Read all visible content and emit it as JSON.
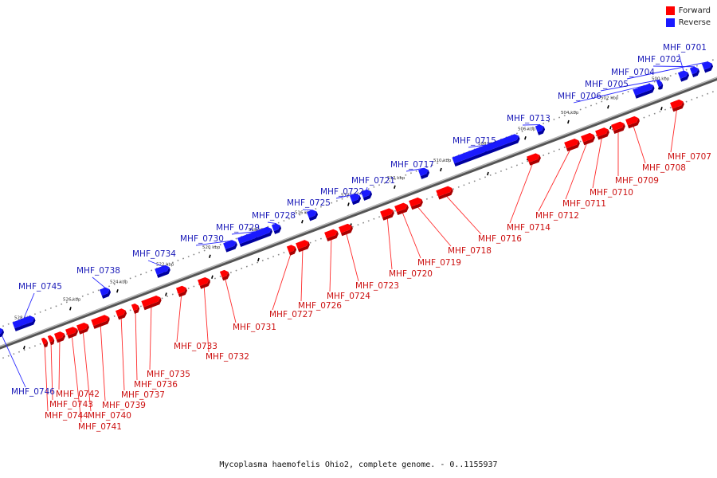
{
  "legend": {
    "forward_label": "Forward",
    "reverse_label": "Reverse",
    "forward_color": "#ff0000",
    "reverse_color": "#1a1aff"
  },
  "caption": "Mycoplasma haemofelis Ohio2, complete genome. - 0..1155937",
  "axis_ticks": [
    "500 kbp",
    "502 kbp",
    "504 kbp",
    "506 kbp",
    "508 kbp",
    "510 kbp",
    "512 kbp",
    "514 kbp",
    "516 kbp",
    "518 kbp",
    "520 kbp",
    "522 kbp",
    "524 kbp",
    "526 kbp",
    "528 kbp"
  ],
  "genes": [
    {
      "id": "MHF_0701",
      "strand": "reverse"
    },
    {
      "id": "MHF_0702",
      "strand": "reverse"
    },
    {
      "id": "MHF_0704",
      "strand": "reverse"
    },
    {
      "id": "MHF_0705",
      "strand": "reverse"
    },
    {
      "id": "MHF_0706",
      "strand": "reverse"
    },
    {
      "id": "MHF_0713",
      "strand": "reverse"
    },
    {
      "id": "MHF_0715",
      "strand": "reverse"
    },
    {
      "id": "MHF_0717",
      "strand": "reverse"
    },
    {
      "id": "MHF_0721",
      "strand": "reverse"
    },
    {
      "id": "MHF_0722",
      "strand": "reverse"
    },
    {
      "id": "MHF_0725",
      "strand": "reverse"
    },
    {
      "id": "MHF_0728",
      "strand": "reverse"
    },
    {
      "id": "MHF_0729",
      "strand": "reverse"
    },
    {
      "id": "MHF_0730",
      "strand": "reverse"
    },
    {
      "id": "MHF_0734",
      "strand": "reverse"
    },
    {
      "id": "MHF_0738",
      "strand": "reverse"
    },
    {
      "id": "MHF_0745",
      "strand": "reverse"
    },
    {
      "id": "MHF_0746",
      "strand": "reverse"
    },
    {
      "id": "MHF_0707",
      "strand": "forward"
    },
    {
      "id": "MHF_0708",
      "strand": "forward"
    },
    {
      "id": "MHF_0709",
      "strand": "forward"
    },
    {
      "id": "MHF_0710",
      "strand": "forward"
    },
    {
      "id": "MHF_0711",
      "strand": "forward"
    },
    {
      "id": "MHF_0712",
      "strand": "forward"
    },
    {
      "id": "MHF_0714",
      "strand": "forward"
    },
    {
      "id": "MHF_0716",
      "strand": "forward"
    },
    {
      "id": "MHF_0718",
      "strand": "forward"
    },
    {
      "id": "MHF_0719",
      "strand": "forward"
    },
    {
      "id": "MHF_0720",
      "strand": "forward"
    },
    {
      "id": "MHF_0723",
      "strand": "forward"
    },
    {
      "id": "MHF_0724",
      "strand": "forward"
    },
    {
      "id": "MHF_0726",
      "strand": "forward"
    },
    {
      "id": "MHF_0727",
      "strand": "forward"
    },
    {
      "id": "MHF_0731",
      "strand": "forward"
    },
    {
      "id": "MHF_0732",
      "strand": "forward"
    },
    {
      "id": "MHF_0733",
      "strand": "forward"
    },
    {
      "id": "MHF_0735",
      "strand": "forward"
    },
    {
      "id": "MHF_0736",
      "strand": "forward"
    },
    {
      "id": "MHF_0737",
      "strand": "forward"
    },
    {
      "id": "MHF_0739",
      "strand": "forward"
    },
    {
      "id": "MHF_0740",
      "strand": "forward"
    },
    {
      "id": "MHF_0741",
      "strand": "forward"
    },
    {
      "id": "MHF_0742",
      "strand": "forward"
    },
    {
      "id": "MHF_0743",
      "strand": "forward"
    },
    {
      "id": "MHF_0744",
      "strand": "forward"
    }
  ]
}
